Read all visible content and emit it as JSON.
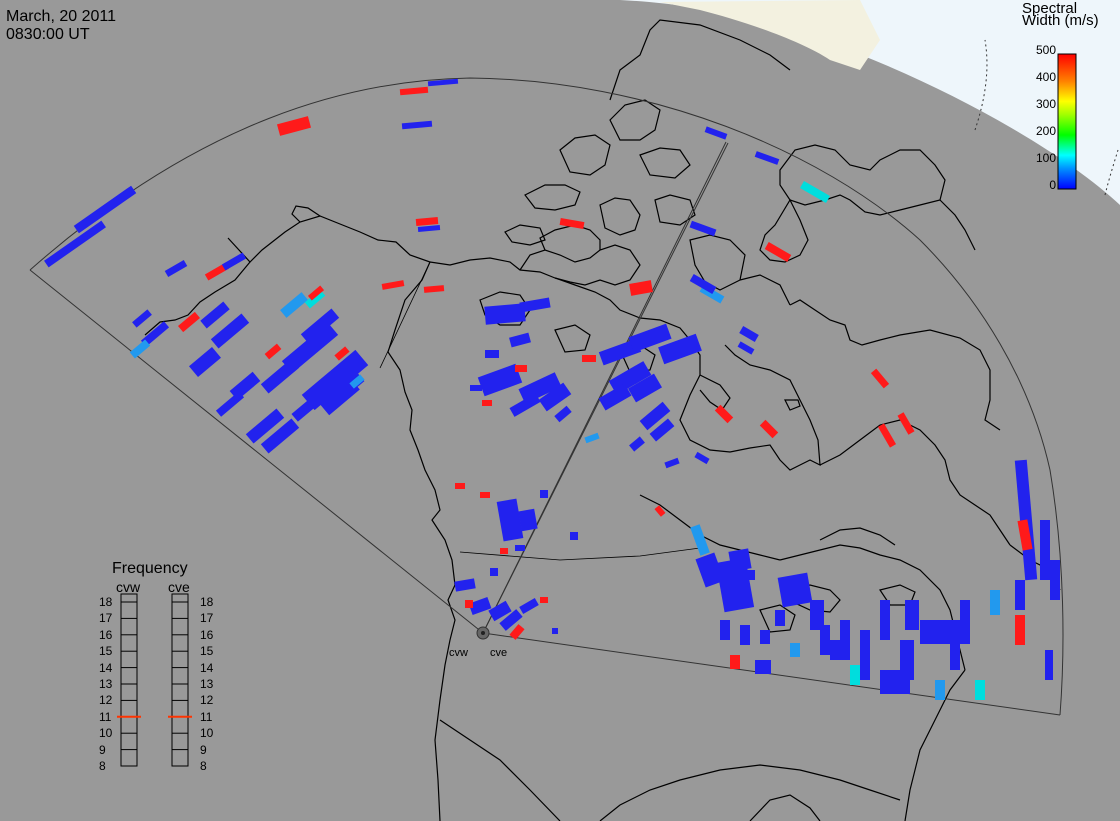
{
  "header": {
    "date": "March, 20 2011",
    "time": "0830:00 UT"
  },
  "colorbar": {
    "title_line1": "Spectral",
    "title_line2": "Width (m/s)",
    "ticks": [
      "500",
      "400",
      "300",
      "200",
      "100",
      "0"
    ],
    "range": [
      0,
      500
    ],
    "colors": [
      "#0000ff",
      "#00a0ff",
      "#00ffff",
      "#00ff00",
      "#ffff00",
      "#ff8000",
      "#ff0000"
    ]
  },
  "frequency": {
    "title": "Frequency",
    "radars": [
      {
        "name": "cvw",
        "value_mhz": 11
      },
      {
        "name": "cve",
        "value_mhz": 11
      }
    ],
    "scale": [
      "18",
      "17",
      "16",
      "15",
      "14",
      "13",
      "12",
      "11",
      "10",
      "9",
      "8"
    ],
    "marker_color": "#ff3300"
  },
  "sites": [
    {
      "name": "cvw"
    },
    {
      "name": "cve"
    }
  ],
  "colors": {
    "background": "#999999",
    "daylight": "#f5f5e6",
    "daylight_ocean": "#e6f5ff",
    "coast": "#000000",
    "low_width": "#2222ee",
    "high_width": "#ff1a1a",
    "mid_width": "#2299ee",
    "cyan_width": "#00dddd"
  }
}
